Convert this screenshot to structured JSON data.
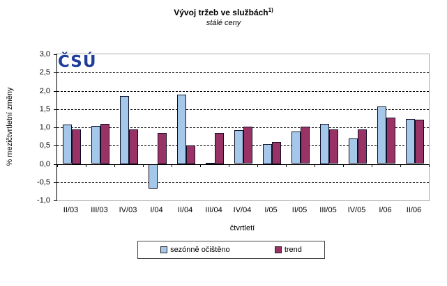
{
  "header": {
    "title": "Vývoj tržeb ve službách",
    "title_superscript": "1)",
    "subtitle": "stálé ceny"
  },
  "logo": {
    "text": "ČSÚ",
    "color": "#1F3D99"
  },
  "chart_data": {
    "type": "bar",
    "title": "Vývoj tržeb ve službách 1)",
    "subtitle": "stálé ceny",
    "xlabel": "čtvrtletí",
    "ylabel": "% mezičtvrtletní změny",
    "ylim": [
      -1.0,
      3.0
    ],
    "ytick_step": 0.5,
    "ytick_labels": [
      "3,0",
      "2,5",
      "2,0",
      "1,5",
      "1,0",
      "0,5",
      "0,0",
      "-0,5",
      "-1,0"
    ],
    "gridlines_at": [
      2.5,
      2.0,
      1.5,
      1.0,
      0.5,
      -0.5
    ],
    "grid_style": "horizontal dashed black",
    "legend_position": "bottom",
    "plot_border_color": "#A9A9A9",
    "bar_border_color": "#0D0D26",
    "categories": [
      "II/03",
      "III/03",
      "IV/03",
      "I/04",
      "II/04",
      "III/04",
      "IV/04",
      "I/05",
      "II/05",
      "III/05",
      "IV/05",
      "I/06",
      "II/06"
    ],
    "series": [
      {
        "name": "sezónně očištěno",
        "color": "#A5C8EA",
        "values": [
          1.08,
          1.03,
          1.85,
          -0.67,
          1.9,
          0.03,
          0.93,
          0.55,
          0.88,
          1.1,
          0.69,
          1.57,
          1.23
        ]
      },
      {
        "name": "trend",
        "color": "#993366",
        "values": [
          0.95,
          1.1,
          0.95,
          0.85,
          0.5,
          0.85,
          1.02,
          0.6,
          1.02,
          0.94,
          0.94,
          1.27,
          1.21
        ]
      }
    ]
  }
}
